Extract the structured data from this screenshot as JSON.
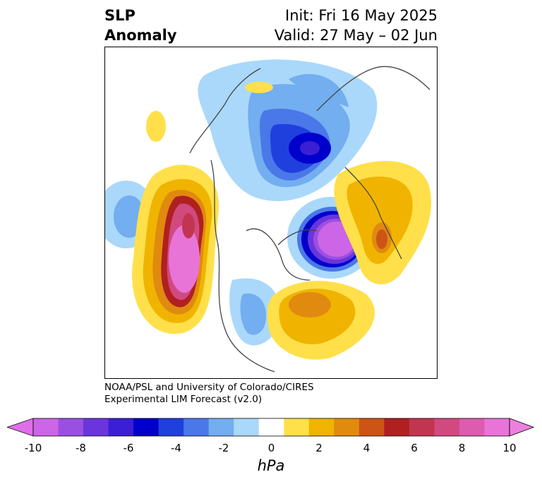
{
  "header": {
    "title_line1": "SLP",
    "title_line2": "Anomaly",
    "init": "Init: Fri 16 May 2025",
    "valid": "Valid: 27 May – 02 Jun"
  },
  "credit": {
    "line1": "NOAA/PSL and University of Colorado/CIRES",
    "line2": "Experimental LIM Forecast (v2.0)"
  },
  "colorbar": {
    "unit": "hPa",
    "tick_labels": [
      "-10",
      "-8",
      "-6",
      "-4",
      "-2",
      "0",
      "2",
      "4",
      "6",
      "8",
      "10"
    ],
    "colors": [
      "#cc66e6",
      "#9b4fe0",
      "#6a35db",
      "#3a1fd4",
      "#0000cc",
      "#2040dd",
      "#4a78e8",
      "#72aef0",
      "#aad8fa",
      "#ffffff",
      "#ffe04a",
      "#f0b400",
      "#e08a10",
      "#cc5515",
      "#b02020",
      "#c23550",
      "#d04a80",
      "#dc5cb0",
      "#e874d8"
    ],
    "min_color": "#dd70e8",
    "max_color": "#ee80dd"
  }
}
